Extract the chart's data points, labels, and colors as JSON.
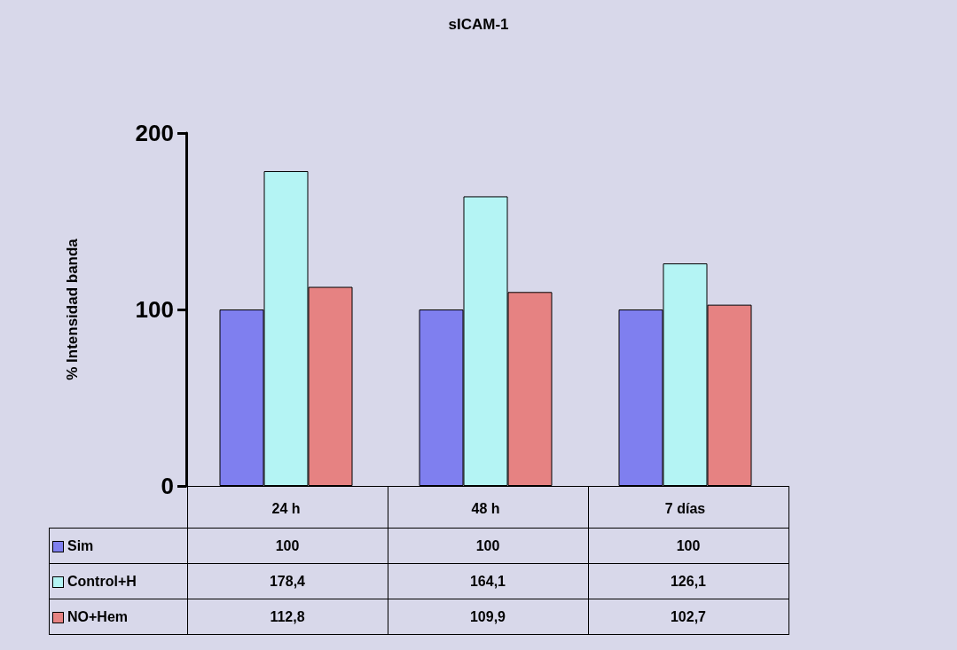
{
  "chart_data": {
    "type": "bar",
    "title": "sICAM-1",
    "ylabel": "% Intensidad banda",
    "categories": [
      "24 h",
      "48 h",
      "7 días"
    ],
    "series": [
      {
        "name": "Sim",
        "color": "#7f7fef",
        "values": [
          100,
          100,
          100
        ],
        "value_labels": [
          "100",
          "100",
          "100"
        ]
      },
      {
        "name": "Control+H",
        "color": "#b4f4f4",
        "values": [
          178.4,
          164.1,
          126.1
        ],
        "value_labels": [
          "178,4",
          "164,1",
          "126,1"
        ]
      },
      {
        "name": "NO+Hem",
        "color": "#e68282",
        "values": [
          112.8,
          109.9,
          102.7
        ],
        "value_labels": [
          "112,8",
          "109,9",
          "102,7"
        ]
      }
    ],
    "ylim": [
      0,
      200
    ],
    "yticks": [
      0,
      100,
      200
    ],
    "grid": false,
    "legend": "bottom left"
  }
}
